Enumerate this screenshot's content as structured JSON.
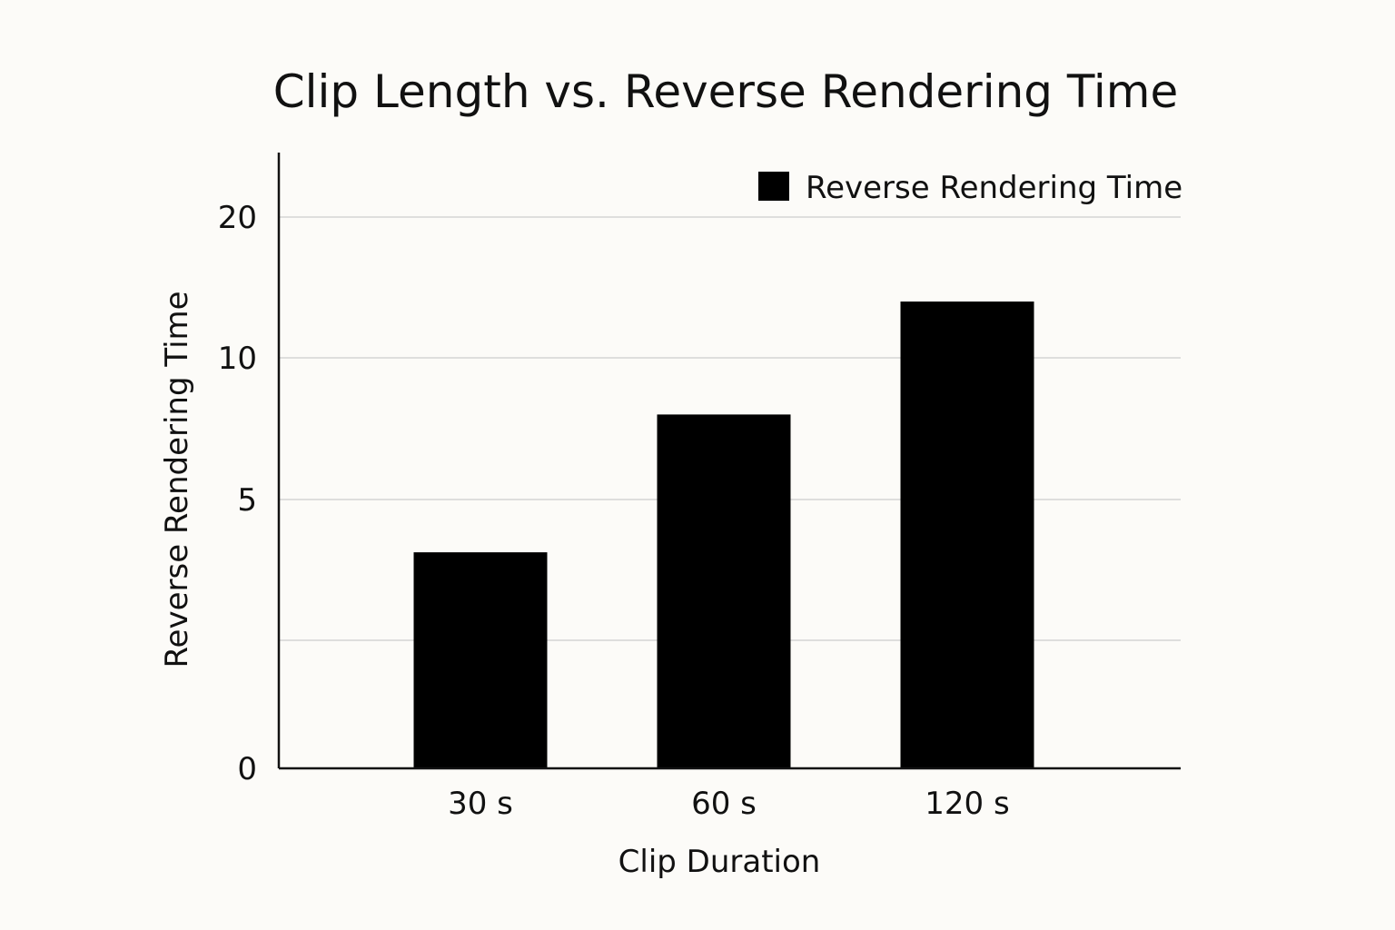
{
  "chart_data": {
    "type": "bar",
    "title": "Clip Length vs. Reverse Rendering Time",
    "xlabel": "Clip Duration",
    "ylabel": "Reverse Rendering Time",
    "categories": [
      "30 s",
      "60 s",
      "120 s"
    ],
    "series": [
      {
        "name": "Reverse Rendering Time",
        "values": [
          3.5,
          8,
          14
        ],
        "color": "#000000"
      }
    ],
    "y_ticks": [
      {
        "value": 0,
        "label": "0",
        "grid": false
      },
      {
        "value": 5,
        "label": "5",
        "grid": true
      },
      {
        "value": 10,
        "label": "10",
        "grid": true
      },
      {
        "value": 20,
        "label": "20",
        "grid": true
      }
    ],
    "y_unlabeled_gridlines": [
      1
    ],
    "ylim_note": "nonlinear y axis as drawn",
    "legend_position": "top-right",
    "grid": true
  }
}
